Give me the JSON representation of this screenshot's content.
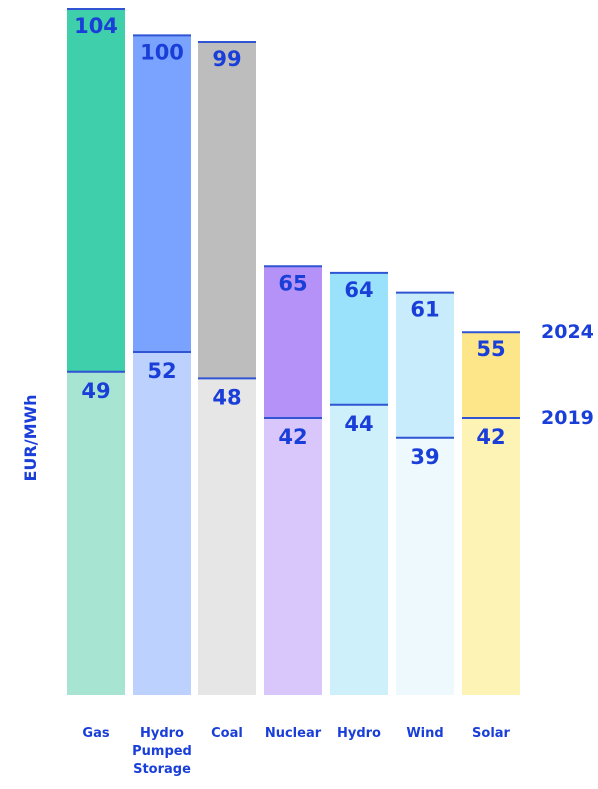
{
  "chart_data": {
    "type": "bar",
    "ylabel": "EUR/MWh",
    "categories": [
      [
        "Gas"
      ],
      [
        "Hydro",
        "Pumped",
        "Storage"
      ],
      [
        "Coal"
      ],
      [
        "Nuclear"
      ],
      [
        "Hydro"
      ],
      [
        "Wind"
      ],
      [
        "Solar"
      ]
    ],
    "series": [
      {
        "name": "2019",
        "values": [
          49,
          52,
          48,
          42,
          44,
          39,
          42
        ]
      },
      {
        "name": "2024",
        "values": [
          104,
          100,
          99,
          65,
          64,
          61,
          55
        ]
      }
    ],
    "ylim": [
      0,
      104
    ],
    "grid": false,
    "legend": "right",
    "colors": {
      "text": "#1a3fd9",
      "line": "#2f55d4",
      "top": [
        "#3fcfab",
        "#7aa2ff",
        "#bdbdbd",
        "#b592f7",
        "#9ae2fb",
        "#c8ecfb",
        "#fde68a"
      ],
      "bottom": [
        "#a7e5d2",
        "#bcd1fd",
        "#e6e6e6",
        "#d9c7fb",
        "#cdf0fb",
        "#eef9fd",
        "#fdf3b5"
      ]
    }
  }
}
